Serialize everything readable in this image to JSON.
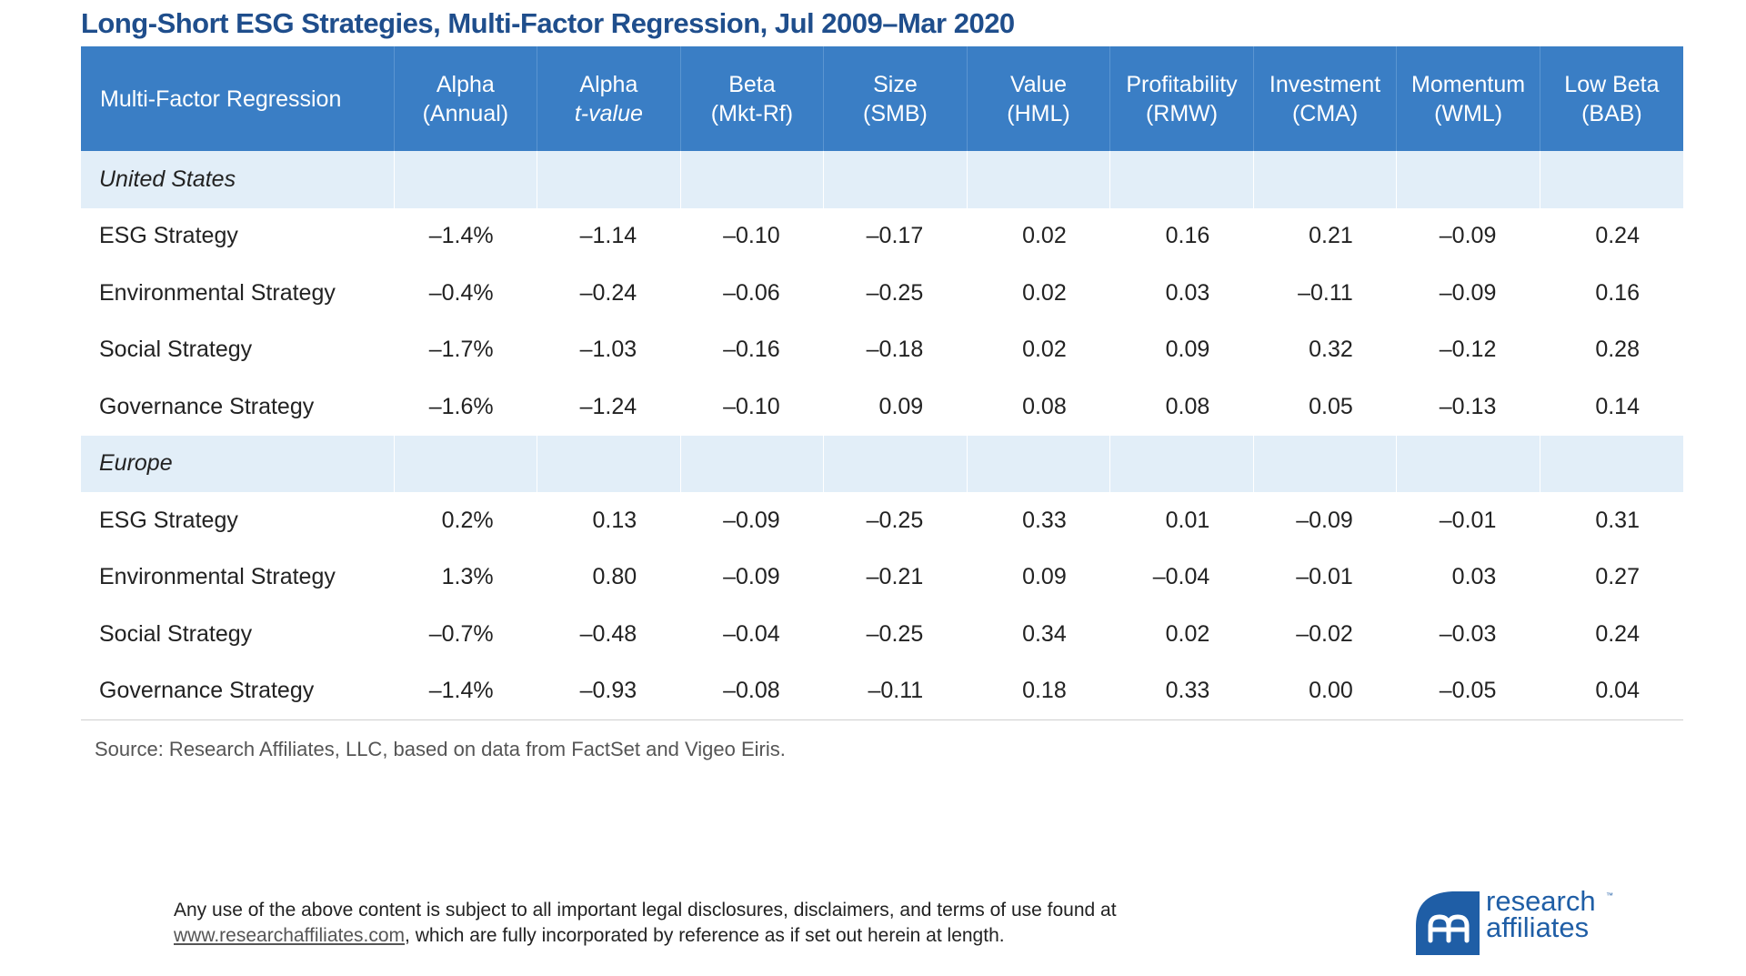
{
  "title": "Long-Short ESG Strategies, Multi-Factor Regression, Jul 2009–Mar 2020",
  "table": {
    "header_label": "Multi-Factor Regression",
    "columns": [
      {
        "line1": "Alpha",
        "line2": "(Annual)"
      },
      {
        "line1": "Alpha",
        "line2": "t-value"
      },
      {
        "line1": "Beta",
        "line2": "(Mkt-Rf)"
      },
      {
        "line1": "Size",
        "line2": "(SMB)"
      },
      {
        "line1": "Value",
        "line2": "(HML)"
      },
      {
        "line1": "Profitability",
        "line2": "(RMW)"
      },
      {
        "line1": "Investment",
        "line2": "(CMA)"
      },
      {
        "line1": "Momentum",
        "line2": "(WML)"
      },
      {
        "line1": "Low Beta",
        "line2": "(BAB)"
      }
    ],
    "groups": [
      {
        "name": "United States",
        "rows": [
          {
            "label": "ESG Strategy",
            "values": [
              "–1.4%",
              "–1.14",
              "–0.10",
              "–0.17",
              "0.02",
              "0.16",
              "0.21",
              "–0.09",
              "0.24"
            ]
          },
          {
            "label": "Environmental Strategy",
            "values": [
              "–0.4%",
              "–0.24",
              "–0.06",
              "–0.25",
              "0.02",
              "0.03",
              "–0.11",
              "–0.09",
              "0.16"
            ]
          },
          {
            "label": "Social Strategy",
            "values": [
              "–1.7%",
              "–1.03",
              "–0.16",
              "–0.18",
              "0.02",
              "0.09",
              "0.32",
              "–0.12",
              "0.28"
            ]
          },
          {
            "label": "Governance Strategy",
            "values": [
              "–1.6%",
              "–1.24",
              "–0.10",
              "0.09",
              "0.08",
              "0.08",
              "0.05",
              "–0.13",
              "0.14"
            ]
          }
        ]
      },
      {
        "name": "Europe",
        "rows": [
          {
            "label": "ESG Strategy",
            "values": [
              "0.2%",
              "0.13",
              "–0.09",
              "–0.25",
              "0.33",
              "0.01",
              "–0.09",
              "–0.01",
              "0.31"
            ]
          },
          {
            "label": "Environmental Strategy",
            "values": [
              "1.3%",
              "0.80",
              "–0.09",
              "–0.21",
              "0.09",
              "–0.04",
              "–0.01",
              "0.03",
              "0.27"
            ]
          },
          {
            "label": "Social Strategy",
            "values": [
              "–0.7%",
              "–0.48",
              "–0.04",
              "–0.25",
              "0.34",
              "0.02",
              "–0.02",
              "–0.03",
              "0.24"
            ]
          },
          {
            "label": "Governance Strategy",
            "values": [
              "–1.4%",
              "–0.93",
              "–0.08",
              "–0.11",
              "0.18",
              "0.33",
              "0.00",
              "–0.05",
              "0.04"
            ]
          }
        ]
      }
    ]
  },
  "source": "Source: Research Affiliates, LLC, based on data from FactSet and Vigeo Eiris.",
  "disclaimer": {
    "line1": "Any use of the above content is subject to all important legal disclosures, disclaimers, and terms of use found at",
    "link": "www.researchaffiliates.com",
    "line2_rest": ", which are fully incorporated by reference as if set out herein at length."
  },
  "logo": {
    "line1": "research",
    "line2": "affiliates",
    "tm": "™"
  },
  "colors": {
    "title": "#1f4e8c",
    "header_bg": "#3a7ec5",
    "group_bg": "#e2eef8",
    "logo_blue": "#1f5ea6"
  }
}
